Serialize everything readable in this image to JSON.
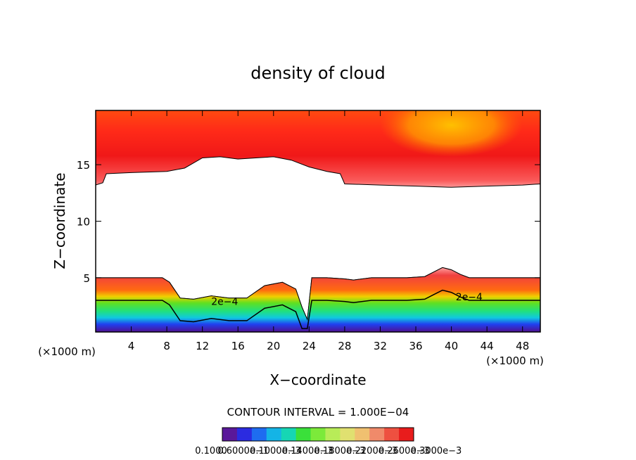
{
  "chart_data": {
    "type": "heatmap",
    "title": "density of cloud",
    "xlabel": "X−coordinate",
    "ylabel": "Z−coordinate",
    "x_unit_left": "(×1000 m)",
    "x_unit_right": "(×1000 m)",
    "xlim": [
      0,
      50
    ],
    "ylim": [
      0.2,
      19.8
    ],
    "x_ticks": [
      4,
      8,
      12,
      16,
      20,
      24,
      28,
      32,
      36,
      40,
      44,
      48
    ],
    "y_ticks": [
      5,
      10,
      15
    ],
    "contour_interval_label": "CONTOUR INTERVAL = 1.000E−04",
    "contour_labels": [
      {
        "text": "2e−4",
        "x": 14.5,
        "z": 2.6
      },
      {
        "text": "2e−4",
        "x": 42,
        "z": 3.0
      }
    ],
    "upper_cloud_base": {
      "x": [
        0,
        0.8,
        1.2,
        4,
        8,
        10,
        12,
        14,
        16,
        18,
        20,
        22,
        24,
        26,
        27.5,
        28,
        32,
        36,
        40,
        44,
        48,
        50
      ],
      "z": [
        13.2,
        13.4,
        14.2,
        14.3,
        14.4,
        14.7,
        15.6,
        15.7,
        15.5,
        15.6,
        15.7,
        15.4,
        14.8,
        14.4,
        14.2,
        13.3,
        13.2,
        13.1,
        13.0,
        13.1,
        13.2,
        13.3
      ]
    },
    "lower_cloud_top": {
      "x": [
        0,
        4,
        7.5,
        8.3,
        9.5,
        11,
        13,
        15,
        17,
        19,
        21,
        22.5,
        23.2,
        23.8,
        24.3,
        26,
        28,
        29,
        31,
        33,
        35,
        37,
        38,
        39,
        40,
        41,
        42,
        44,
        46,
        48,
        50
      ],
      "z": [
        5.0,
        5.0,
        5.0,
        4.6,
        3.2,
        3.1,
        3.4,
        3.2,
        3.2,
        4.3,
        4.6,
        4.0,
        2.4,
        1.3,
        5.0,
        5.0,
        4.9,
        4.8,
        5.0,
        5.0,
        5.0,
        5.1,
        5.5,
        5.9,
        5.7,
        5.3,
        5.0,
        5.0,
        5.0,
        5.0,
        5.0
      ]
    },
    "colorbar": {
      "colors": [
        "#5a189a",
        "#2b2be0",
        "#1e6cf0",
        "#14b4e6",
        "#16d6b4",
        "#3ae03a",
        "#7cea3a",
        "#b8ec58",
        "#e0e070",
        "#f0c070",
        "#f08a6a",
        "#ee5040",
        "#e81c1c"
      ],
      "tick_labels": [
        "0.1000",
        "0.6000e−1",
        "0.1000e−3",
        "0.1400e−3",
        "0.1800e−3",
        "0.2200e−3",
        "0.2600e−3",
        "0.3000e−3"
      ]
    }
  }
}
